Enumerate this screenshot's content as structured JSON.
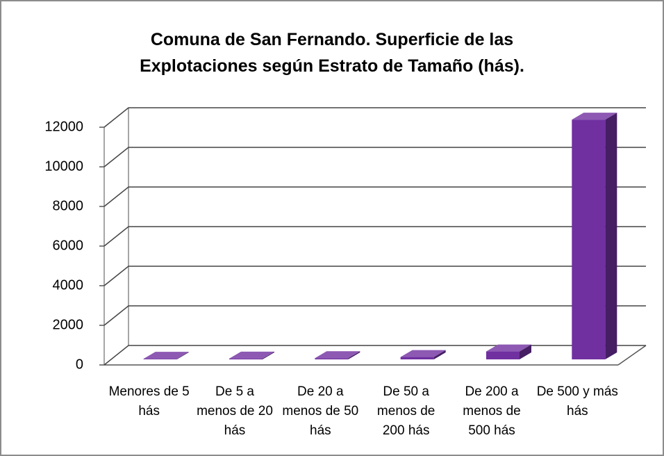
{
  "chart_data": {
    "type": "bar3d",
    "title": "Comuna de San Fernando. Superficie de las Explotaciones según Estrato de Tamaño (hás).",
    "categories": [
      "Menores de 5 hás",
      "De 5 a menos de 20 hás",
      "De 20 a menos de 50 hás",
      "De 50 a menos de 200 hás",
      "De 200 a menos de 500 hás",
      "De 500 y más hás"
    ],
    "values": [
      30,
      40,
      60,
      120,
      400,
      12100
    ],
    "color": "#7030a0",
    "ylim": [
      0,
      12000
    ],
    "yticks": [
      0,
      2000,
      4000,
      6000,
      8000,
      10000,
      12000
    ],
    "grid": true
  }
}
